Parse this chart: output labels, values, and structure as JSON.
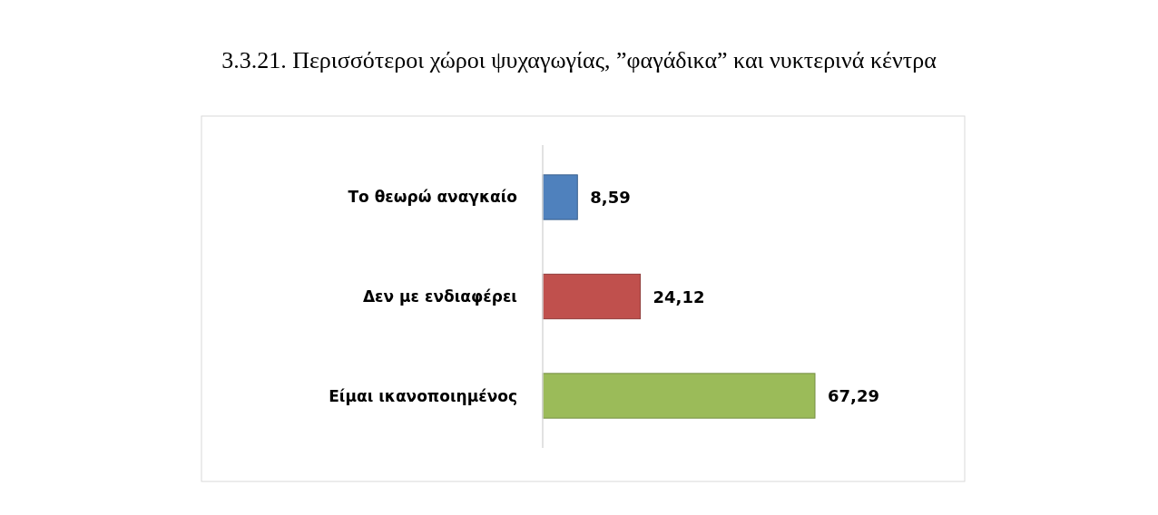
{
  "chart_data": {
    "type": "bar",
    "orientation": "horizontal",
    "title": "3.3.21. Περισσότεροι χώροι ψυχαγωγίας, ”φαγάδικα” και νυκτερινά κέντρα",
    "categories": [
      "Το θεωρώ αναγκαίο",
      "Δεν με ενδιαφέρει",
      "Είμαι ικανοποιημένος"
    ],
    "values": [
      8.59,
      24.12,
      67.29
    ],
    "colors": [
      "#4f81bd",
      "#c0504d",
      "#9bbb59"
    ],
    "value_labels": [
      "8,59",
      "24,12",
      "67,29"
    ]
  }
}
